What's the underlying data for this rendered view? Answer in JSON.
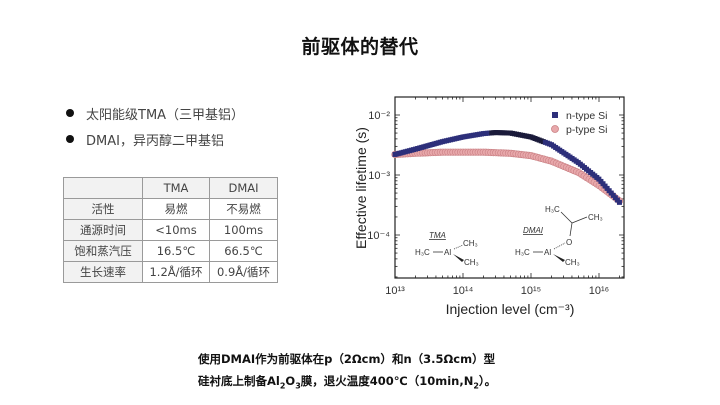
{
  "slide": {
    "title": "前驱体的替代",
    "bullets": [
      {
        "icon": "bullet-dot",
        "text": "太阳能级TMA（三甲基铝）"
      },
      {
        "icon": "bullet-dot",
        "text": "DMAI，异丙醇二甲基铝"
      }
    ],
    "table": {
      "headers": [
        "",
        "TMA",
        "DMAI"
      ],
      "rows": [
        [
          "活性",
          "易燃",
          "不易燃"
        ],
        [
          "通源时间",
          "<10ms",
          "100ms"
        ],
        [
          "饱和蒸汽压",
          "16.5℃",
          "66.5℃"
        ],
        [
          "生长速率",
          "1.2Å/循环",
          "0.9Å/循环"
        ]
      ]
    },
    "caption": {
      "line1": "使用DMAI作为前驱体在p（2Ωcm）和n（3.5Ωcm）型",
      "line2_pre": "硅衬底上制备Al",
      "line2_sub1": "2",
      "line2_mid": "O",
      "line2_sub2": "3",
      "line2_post": "膜，退火温度400℃（10min,N",
      "line2_sub3": "2",
      "line2_end": "）。"
    }
  },
  "colors": {
    "n_type": "#2d2f7a",
    "n_type_dark": "#1a1a3a",
    "p_type_fill": "#e8a8ab",
    "p_type_edge": "#c98084"
  },
  "chart_data": {
    "type": "scatter",
    "title": "",
    "xlabel": "Injection level (cm⁻³)",
    "ylabel": "Effective lifetime (s)",
    "xscale": "log",
    "yscale": "log",
    "xlim": [
      10000000000000.0,
      2e+16
    ],
    "ylim": [
      2e-05,
      0.02
    ],
    "x_ticks": [
      "10¹³",
      "10¹⁴",
      "10¹⁵",
      "10¹⁶"
    ],
    "y_ticks": [
      "10⁻⁴",
      "10⁻³",
      "10⁻²"
    ],
    "legend": {
      "position": "upper right",
      "entries": [
        "n-type Si",
        "p-type Si"
      ]
    },
    "series": [
      {
        "name": "n-type Si",
        "marker": "square",
        "x": [
          10000000000000.0,
          20000000000000.0,
          50000000000000.0,
          100000000000000.0,
          200000000000000.0,
          300000000000000.0,
          500000000000000.0,
          1000000000000000.0,
          2000000000000000.0,
          5000000000000000.0,
          1e+16,
          2e+16
        ],
        "y": [
          0.0022,
          0.0027,
          0.0036,
          0.0043,
          0.0049,
          0.0051,
          0.005,
          0.0043,
          0.0032,
          0.0016,
          0.00085,
          0.00035
        ]
      },
      {
        "name": "p-type Si",
        "marker": "circle",
        "x": [
          10000000000000.0,
          20000000000000.0,
          50000000000000.0,
          100000000000000.0,
          200000000000000.0,
          500000000000000.0,
          1000000000000000.0,
          2000000000000000.0,
          5000000000000000.0,
          1e+16,
          2e+16
        ],
        "y": [
          0.0022,
          0.0023,
          0.0024,
          0.0024,
          0.0024,
          0.0023,
          0.0021,
          0.0017,
          0.0011,
          0.00067,
          0.00037
        ]
      }
    ],
    "annotations": [
      {
        "label": "TMA",
        "structure": "H₃C—Al(CH₃)₂"
      },
      {
        "label": "DMAI",
        "structure": "H₃C—Al(CH₃)—O—CH(CH₃)₂"
      }
    ]
  }
}
